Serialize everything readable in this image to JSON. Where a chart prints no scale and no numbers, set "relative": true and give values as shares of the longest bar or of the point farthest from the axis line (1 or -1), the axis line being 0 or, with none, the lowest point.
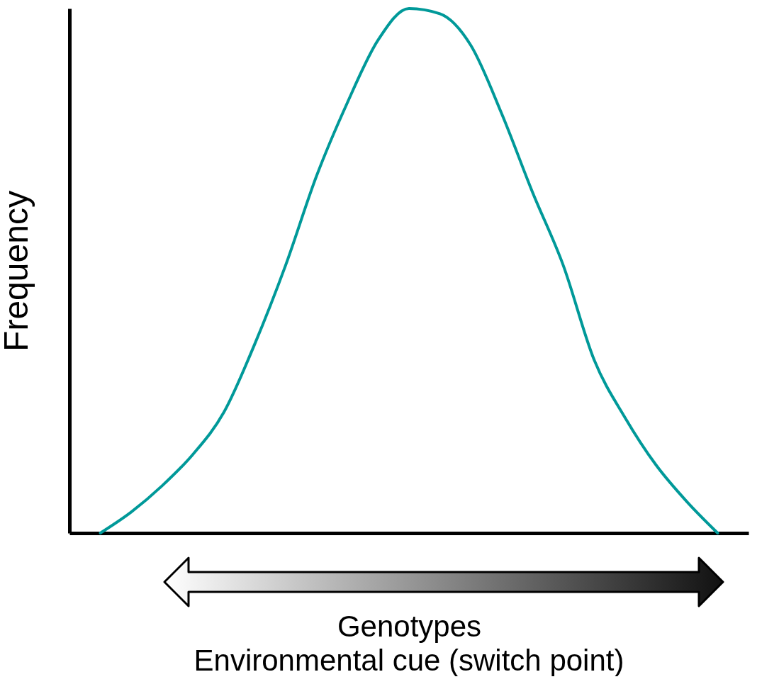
{
  "chart_data": {
    "type": "line",
    "relative": true,
    "ylabel": "Frequency",
    "xlabel": "Genotypes",
    "annotations": [
      "Environmental cue (switch point)"
    ],
    "grid": false,
    "marker": "none",
    "categories": [
      null,
      null,
      null,
      null,
      null,
      null,
      null,
      null,
      null,
      null,
      null,
      null,
      null,
      null,
      null,
      null,
      null,
      null,
      null,
      null,
      null
    ],
    "series": [
      {
        "color": "#009999",
        "values": [
          0,
          0.04,
          0.09,
          0.15,
          0.23,
          0.36,
          0.51,
          0.68,
          0.82,
          0.94,
          1.0,
          0.99,
          0.93,
          0.8,
          0.65,
          0.51,
          0.33,
          0.22,
          0.13,
          0.06,
          0
        ]
      }
    ]
  }
}
